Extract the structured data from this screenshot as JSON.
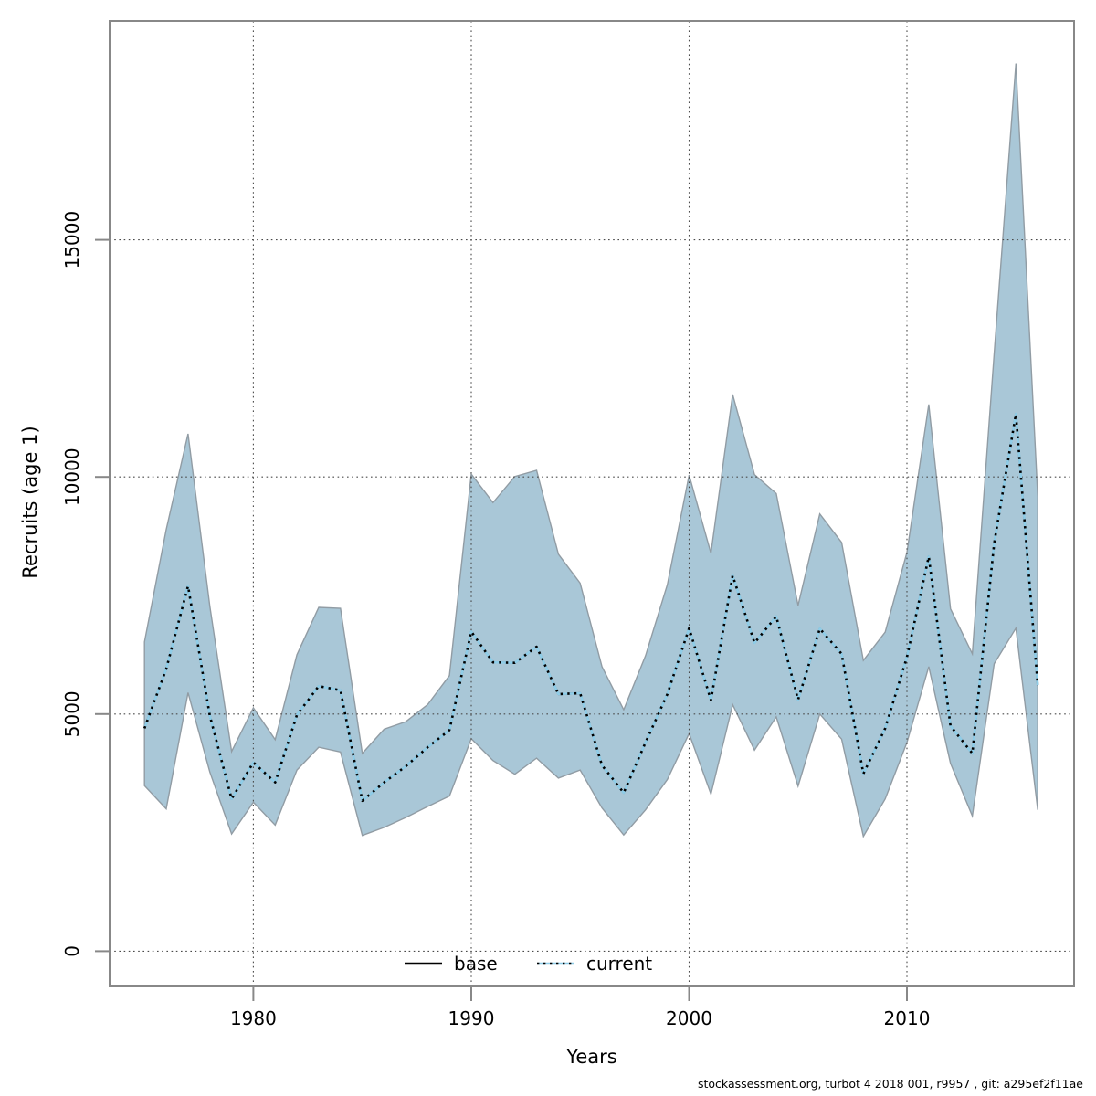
{
  "page": {
    "background": "#ffffff"
  },
  "footer": {
    "text": "stockassessment.org, turbot  4  2018  001, r9957 , git: a295ef2f11ae"
  },
  "legend": {
    "items": [
      {
        "label": "base",
        "line_style": "solid",
        "color": "#000000"
      },
      {
        "label": "current",
        "line_style": "dotted",
        "color": "#8fcde8"
      }
    ],
    "position": "bottom-center-inside"
  },
  "colors": {
    "band_fill": "#a9c7d7",
    "band_edge": "#919ca4",
    "axis": "#888888",
    "grid": "#4a4a4a",
    "current_blue": "#8fcde8",
    "base_black": "#000000",
    "text": "#000000"
  },
  "chart_data": {
    "type": "line",
    "title": "",
    "xlabel": "Years",
    "ylabel": "Recruits (age 1)",
    "grid": "dotted",
    "legend_position": "bottom-center",
    "xlim": [
      1973.4,
      2017.67
    ],
    "ylim": [
      -744,
      19616
    ],
    "xticks": [
      1980,
      1990,
      2000,
      2010
    ],
    "yticks": [
      0,
      5000,
      10000,
      15000
    ],
    "x": [
      1975,
      1976,
      1977,
      1978,
      1979,
      1980,
      1981,
      1982,
      1983,
      1984,
      1985,
      1986,
      1987,
      1988,
      1989,
      1990,
      1991,
      1992,
      1993,
      1994,
      1995,
      1996,
      1997,
      1998,
      1999,
      2000,
      2001,
      2002,
      2003,
      2004,
      2005,
      2006,
      2007,
      2008,
      2009,
      2010,
      2011,
      2012,
      2013,
      2014,
      2015,
      2016
    ],
    "series": [
      {
        "name": "base",
        "color": "#000000",
        "line": "solid",
        "values": [
          4700,
          5950,
          7700,
          4970,
          3210,
          3980,
          3560,
          4980,
          5590,
          5500,
          3170,
          3560,
          3900,
          4300,
          4660,
          6740,
          6090,
          6080,
          6420,
          5420,
          5440,
          3920,
          3340,
          4400,
          5420,
          6810,
          5290,
          7920,
          6500,
          7060,
          5300,
          6800,
          6270,
          3740,
          4700,
          6200,
          8320,
          4750,
          4170,
          8600,
          11330,
          5610
        ]
      },
      {
        "name": "current",
        "color": "#8fcde8",
        "line": "dotted",
        "values": [
          4700,
          5950,
          7700,
          4970,
          3210,
          3980,
          3560,
          4980,
          5590,
          5500,
          3170,
          3560,
          3900,
          4300,
          4660,
          6740,
          6090,
          6080,
          6420,
          5420,
          5440,
          3920,
          3340,
          4400,
          5420,
          6810,
          5290,
          7920,
          6500,
          7060,
          5300,
          6800,
          6270,
          3740,
          4700,
          6200,
          8320,
          4750,
          4170,
          8600,
          11330,
          5610
        ]
      }
    ],
    "band": {
      "name": "current confidence interval",
      "fill": "#a9c7d7",
      "low": [
        3490,
        3000,
        5450,
        3780,
        2470,
        3140,
        2660,
        3820,
        4300,
        4200,
        2440,
        2610,
        2820,
        3050,
        3270,
        4480,
        4020,
        3730,
        4070,
        3650,
        3820,
        3020,
        2450,
        2980,
        3620,
        4590,
        3310,
        5200,
        4240,
        4940,
        3480,
        5000,
        4470,
        2420,
        3210,
        4400,
        6000,
        3960,
        2850,
        6060,
        6810,
        2980
      ],
      "high": [
        6520,
        8890,
        10910,
        7280,
        4210,
        5130,
        4460,
        6250,
        7250,
        7230,
        4170,
        4680,
        4840,
        5200,
        5810,
        10060,
        9460,
        10010,
        10140,
        8370,
        7760,
        6000,
        5090,
        6230,
        7730,
        10040,
        8390,
        11740,
        10050,
        9650,
        7290,
        9220,
        8620,
        6130,
        6730,
        8410,
        11530,
        7220,
        6270,
        12600,
        18720,
        9590
      ]
    }
  }
}
